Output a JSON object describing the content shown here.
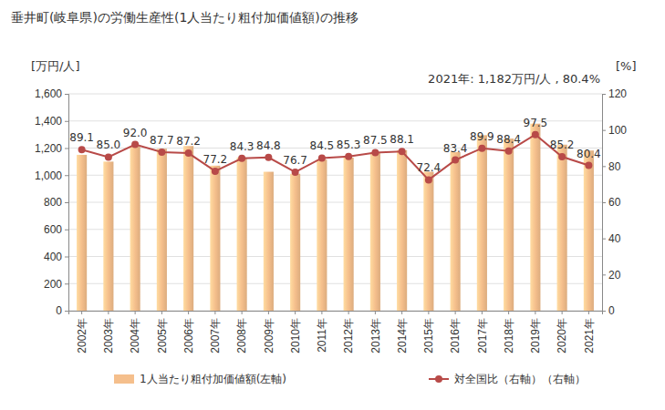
{
  "chart_data": {
    "type": "bar",
    "title": "垂井町(岐阜県)の労働生産性(1人当たり粗付加価値額)の推移",
    "annotation": "2021年: 1,182万円/人 , 80.4%",
    "y_label": "[万円/人]",
    "y2_label": "[%]",
    "categories": [
      "2002年",
      "2003年",
      "2004年",
      "2005年",
      "2006年",
      "2007年",
      "2008年",
      "2009年",
      "2010年",
      "2011年",
      "2012年",
      "2013年",
      "2014年",
      "2015年",
      "2016年",
      "2017年",
      "2018年",
      "2019年",
      "2020年",
      "2021年"
    ],
    "series": [
      {
        "name": "1人当たり粗付加価値額(左軸)",
        "type": "bar",
        "color": "#f5bf8c",
        "values": [
          1150,
          1100,
          1210,
          1195,
          1215,
          1070,
          1130,
          1025,
          1010,
          1115,
          1130,
          1170,
          1185,
          1025,
          1170,
          1295,
          1270,
          1380,
          1225,
          1182
        ]
      },
      {
        "name": "対全国比（右軸）（右軸）",
        "type": "line",
        "axis": "y2",
        "color": "#b84a48",
        "marker": "circle",
        "data_labels": true,
        "values": [
          89.1,
          85.0,
          92.0,
          87.7,
          87.2,
          77.2,
          84.3,
          84.8,
          76.7,
          84.5,
          85.3,
          87.5,
          88.1,
          72.4,
          83.4,
          89.9,
          88.4,
          97.5,
          85.2,
          80.4
        ],
        "value_labels": [
          "89.1",
          "85.0",
          "92.0",
          "87.7",
          "87.2",
          "77.2",
          "84.3",
          "84.8",
          "76.7",
          "84.5",
          "85.3",
          "87.5",
          "88.1",
          "72.4",
          "83.4",
          "89.9",
          "88.4",
          "97.5",
          "85.2",
          "80.4"
        ]
      }
    ],
    "ylim": [
      0,
      1600
    ],
    "yticks": [
      0,
      200,
      400,
      600,
      800,
      {
        "value": 1000,
        "label": "1,000"
      },
      {
        "value": 1200,
        "label": "1,200"
      },
      {
        "value": 1400,
        "label": "1,400"
      },
      {
        "value": 1600,
        "label": "1,600"
      }
    ],
    "y2lim": [
      0,
      120
    ],
    "y2ticks": [
      0,
      20,
      40,
      60,
      80,
      100,
      120
    ],
    "legend": "bottom"
  }
}
